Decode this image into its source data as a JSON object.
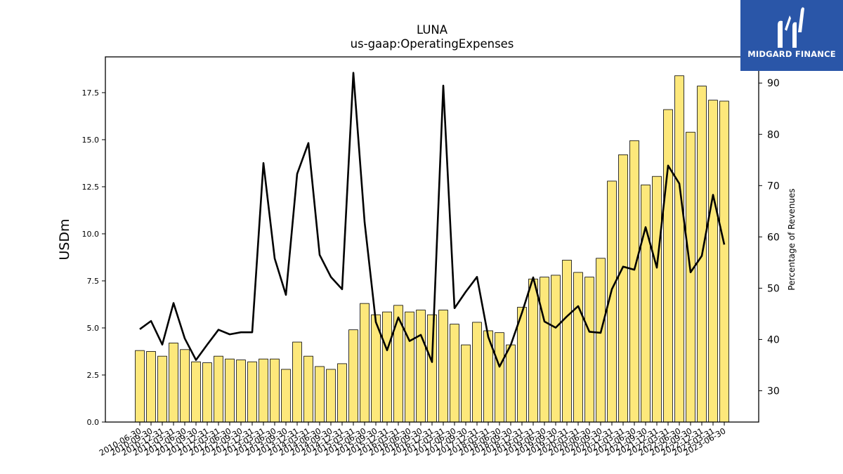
{
  "chart_data": {
    "type": "bar",
    "title": "LUNA",
    "subtitle": "us-gaap:OperatingExpenses",
    "ylabel": "USDm",
    "y2label": "Percentage of Revenues",
    "ylim": [
      0,
      19.4
    ],
    "y2lim": [
      23.9,
      95.1
    ],
    "yticks": [
      "0.0",
      "2.5",
      "5.0",
      "7.5",
      "10.0",
      "12.5",
      "15.0",
      "17.5"
    ],
    "y2ticks": [
      "30",
      "40",
      "50",
      "60",
      "70",
      "80",
      "90"
    ],
    "bar_color": "#fde87b",
    "line_color": "#000000",
    "categories": [
      "2010-06-30",
      "2010-09-30",
      "2010-12-31",
      "2011-03-31",
      "2011-06-30",
      "2011-09-30",
      "2011-12-31",
      "2012-03-31",
      "2012-06-30",
      "2012-09-30",
      "2012-12-31",
      "2013-03-31",
      "2013-06-30",
      "2013-09-30",
      "2013-12-31",
      "2014-03-31",
      "2014-06-30",
      "2014-09-30",
      "2014-12-31",
      "2015-03-31",
      "2015-06-30",
      "2015-09-30",
      "2015-12-31",
      "2016-03-31",
      "2016-06-30",
      "2016-09-30",
      "2016-12-31",
      "2017-03-31",
      "2017-06-30",
      "2017-09-30",
      "2017-12-31",
      "2018-03-31",
      "2018-06-30",
      "2018-09-30",
      "2018-12-31",
      "2019-03-31",
      "2019-06-30",
      "2019-09-30",
      "2019-12-31",
      "2020-03-31",
      "2020-06-30",
      "2020-09-30",
      "2020-12-31",
      "2021-03-31",
      "2021-06-30",
      "2021-09-30",
      "2021-12-31",
      "2022-03-31",
      "2022-06-30",
      "2022-09-30",
      "2022-12-31",
      "2023-03-31",
      "2023-06-30"
    ],
    "series": [
      {
        "axis": "left",
        "type": "bar",
        "values": [
          3.8,
          3.75,
          3.5,
          4.2,
          3.85,
          3.2,
          3.15,
          3.5,
          3.35,
          3.3,
          3.2,
          3.35,
          3.35,
          2.8,
          4.25,
          3.5,
          2.95,
          2.8,
          3.1,
          4.9,
          6.3,
          5.7,
          5.85,
          6.2,
          5.85,
          5.95,
          5.7,
          5.95,
          5.2,
          4.1,
          5.3,
          4.85,
          4.75,
          4.1,
          6.1,
          7.6,
          7.7,
          7.8,
          8.6,
          7.95,
          7.7,
          8.7,
          12.8,
          14.2,
          14.95,
          12.6,
          13.05,
          16.6,
          18.4,
          15.4,
          17.85,
          17.1,
          17.05
        ]
      },
      {
        "axis": "right",
        "type": "line",
        "values": [
          42,
          43.6,
          39,
          47.1,
          40.2,
          36,
          39,
          41.9,
          41,
          41.4,
          41.4,
          74.4,
          55.8,
          48.7,
          72.3,
          78.3,
          56.5,
          52.2,
          49.8,
          92,
          62.9,
          43.4,
          37.9,
          44.3,
          39.7,
          40.9,
          35.6,
          89.5,
          46.1,
          49.3,
          52.2,
          40.5,
          34.7,
          38.9,
          45.2,
          52.1,
          43.5,
          42.3,
          44.5,
          46.5,
          41.5,
          41.3,
          49.8,
          54.2,
          53.6,
          61.9,
          54,
          73.9,
          70.4,
          53.1,
          56.3,
          68.2,
          58.5
        ]
      }
    ]
  },
  "logo": {
    "text": "MIDGARD FINANCE"
  }
}
